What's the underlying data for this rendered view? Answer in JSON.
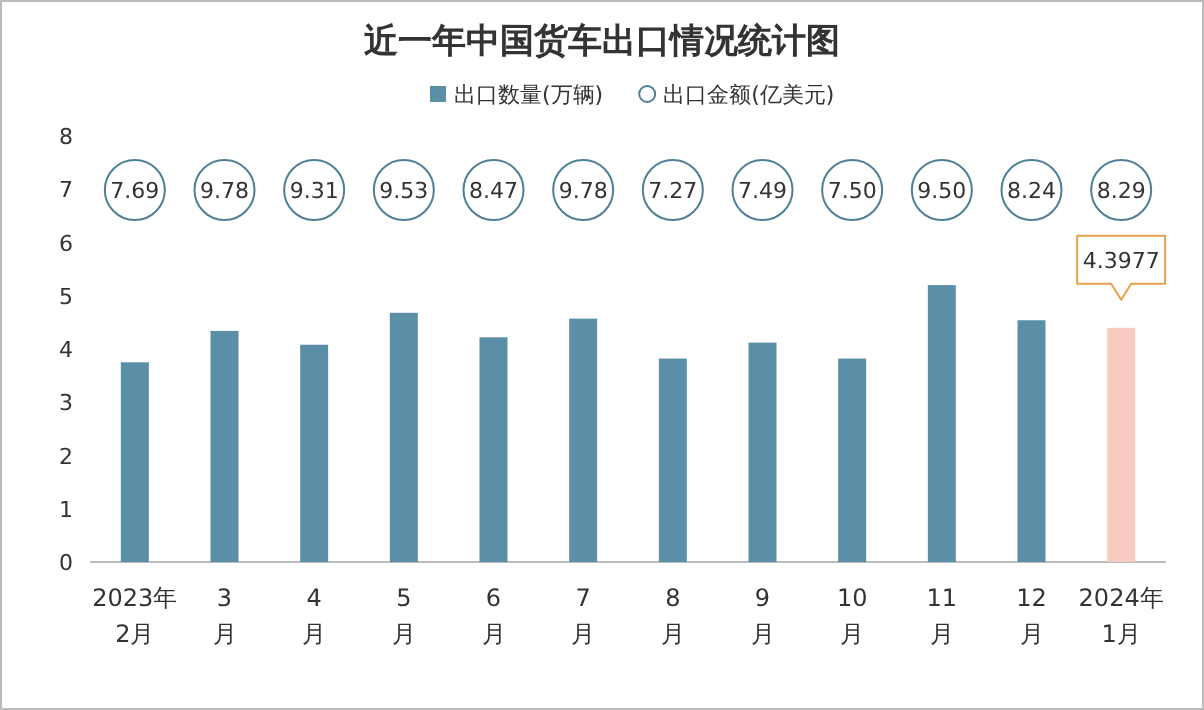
{
  "chart_data": [
    {
      "type": "bar",
      "title": "近一年中国货车出口情况统计图",
      "categories": [
        "2023年\n2月",
        "3\n月",
        "4\n月",
        "5\n月",
        "6\n月",
        "7\n月",
        "8\n月",
        "9\n月",
        "10\n月",
        "11\n月",
        "12\n月",
        "2024年\n1月"
      ],
      "series": [
        {
          "name": "出口数量(万辆)",
          "color": "#5b8fa8",
          "colors": [
            "#5b8fa8",
            "#5b8fa8",
            "#5b8fa8",
            "#5b8fa8",
            "#5b8fa8",
            "#5b8fa8",
            "#5b8fa8",
            "#5b8fa8",
            "#5b8fa8",
            "#5b8fa8",
            "#5b8fa8",
            "#f8cbc0"
          ],
          "values": [
            3.75,
            4.34,
            4.08,
            4.68,
            4.22,
            4.57,
            3.82,
            4.12,
            3.82,
            5.2,
            4.54,
            4.3977
          ],
          "value_labels": [
            null,
            null,
            null,
            null,
            null,
            null,
            null,
            null,
            null,
            null,
            null,
            "4.3977"
          ]
        }
      ],
      "ylim": [
        0,
        8
      ],
      "yticks": [
        0,
        1,
        2,
        3,
        4,
        5,
        6,
        7,
        8
      ],
      "legend": "top"
    },
    {
      "type": "other",
      "series": [
        {
          "name": "出口金额(亿美元)",
          "marker": "circle",
          "color": "#4e7f96",
          "values": [
            7.69,
            9.78,
            9.31,
            9.53,
            8.47,
            9.78,
            7.27,
            7.49,
            7.5,
            9.5,
            8.24,
            8.29
          ],
          "value_labels": [
            "7.69",
            "9.78",
            "9.31",
            "9.53",
            "8.47",
            "9.78",
            "7.27",
            "7.49",
            "7.50",
            "9.50",
            "8.24",
            "8.29"
          ]
        }
      ],
      "legend": "top"
    }
  ]
}
